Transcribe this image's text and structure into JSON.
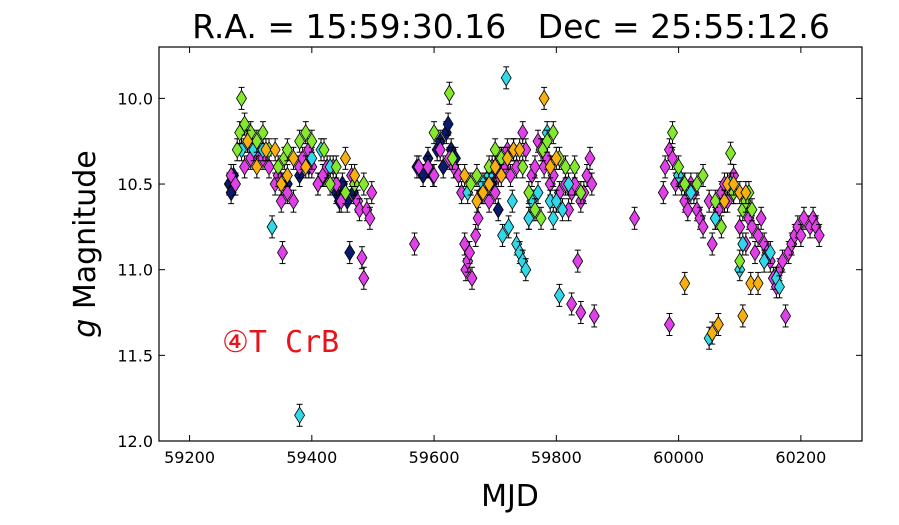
{
  "chart_data": {
    "type": "scatter",
    "title": "R.A. = 15:59:30.16   Dec = 25:55:12.6",
    "xlabel": "MJD",
    "ylabel_italic": "g",
    "ylabel_rest": " Magnitude",
    "annotation": "④T CrB",
    "xlim": [
      59150,
      60300
    ],
    "ylim": [
      12.0,
      9.7
    ],
    "y_inverted": true,
    "grid": false,
    "x_ticks": [
      59200,
      59400,
      59600,
      59800,
      60000,
      60200
    ],
    "y_ticks": [
      10.0,
      10.5,
      11.0,
      11.5,
      12.0
    ],
    "x_tick_labels": [
      "59200",
      "59400",
      "59600",
      "59800",
      "60000",
      "60200"
    ],
    "y_tick_labels": [
      "10.0",
      "10.5",
      "11.0",
      "11.5",
      "12.0"
    ],
    "colors": {
      "navy": "#0b1a6b",
      "magenta": "#e040e8",
      "cyan": "#30d8e8",
      "green": "#84e82c",
      "orange": "#f8b010"
    },
    "series": [
      {
        "color": "navy",
        "points": [
          [
            59265,
            10.5
          ],
          [
            59268,
            10.55
          ],
          [
            59272,
            10.45
          ],
          [
            59275,
            10.5
          ],
          [
            59360,
            10.5
          ],
          [
            59380,
            10.45
          ],
          [
            59395,
            10.4
          ],
          [
            59410,
            10.5
          ],
          [
            59420,
            10.45
          ],
          [
            59440,
            10.55
          ],
          [
            59445,
            10.6
          ],
          [
            59450,
            10.5
          ],
          [
            59458,
            10.6
          ],
          [
            59462,
            10.9
          ],
          [
            59468,
            10.55
          ],
          [
            59572,
            10.4
          ],
          [
            59582,
            10.45
          ],
          [
            59590,
            10.35
          ],
          [
            59598,
            10.45
          ],
          [
            59605,
            10.3
          ],
          [
            59610,
            10.25
          ],
          [
            59615,
            10.4
          ],
          [
            59620,
            10.2
          ],
          [
            59623,
            10.15
          ],
          [
            59628,
            10.3
          ],
          [
            59635,
            10.35
          ],
          [
            59690,
            10.45
          ],
          [
            59695,
            10.5
          ],
          [
            59705,
            10.65
          ]
        ]
      },
      {
        "color": "magenta",
        "points": [
          [
            59268,
            10.45
          ],
          [
            59275,
            10.5
          ],
          [
            59290,
            10.4
          ],
          [
            59300,
            10.35
          ],
          [
            59310,
            10.3
          ],
          [
            59320,
            10.35
          ],
          [
            59330,
            10.4
          ],
          [
            59340,
            10.5
          ],
          [
            59345,
            10.45
          ],
          [
            59350,
            10.6
          ],
          [
            59352,
            10.9
          ],
          [
            59360,
            10.55
          ],
          [
            59370,
            10.6
          ],
          [
            59380,
            10.4
          ],
          [
            59385,
            10.35
          ],
          [
            59395,
            10.3
          ],
          [
            59400,
            10.4
          ],
          [
            59410,
            10.5
          ],
          [
            59418,
            10.45
          ],
          [
            59425,
            10.4
          ],
          [
            59435,
            10.4
          ],
          [
            59440,
            10.5
          ],
          [
            59448,
            10.6
          ],
          [
            59455,
            10.55
          ],
          [
            59465,
            10.45
          ],
          [
            59470,
            10.5
          ],
          [
            59475,
            10.6
          ],
          [
            59478,
            10.65
          ],
          [
            59482,
            10.93
          ],
          [
            59485,
            11.05
          ],
          [
            59490,
            10.65
          ],
          [
            59495,
            10.7
          ],
          [
            59498,
            10.55
          ],
          [
            59568,
            10.85
          ],
          [
            59575,
            10.4
          ],
          [
            59590,
            10.4
          ],
          [
            59600,
            10.45
          ],
          [
            59610,
            10.3
          ],
          [
            59625,
            10.35
          ],
          [
            59632,
            10.4
          ],
          [
            59640,
            10.45
          ],
          [
            59645,
            10.55
          ],
          [
            59650,
            10.85
          ],
          [
            59652,
            11.0
          ],
          [
            59655,
            10.95
          ],
          [
            59658,
            10.9
          ],
          [
            59662,
            11.05
          ],
          [
            59668,
            10.8
          ],
          [
            59672,
            10.7
          ],
          [
            59678,
            10.55
          ],
          [
            59685,
            10.5
          ],
          [
            59690,
            10.6
          ],
          [
            59695,
            10.4
          ],
          [
            59700,
            10.55
          ],
          [
            59705,
            10.45
          ],
          [
            59710,
            10.35
          ],
          [
            59715,
            10.4
          ],
          [
            59720,
            10.3
          ],
          [
            59725,
            10.45
          ],
          [
            59730,
            10.3
          ],
          [
            59735,
            10.4
          ],
          [
            59745,
            10.2
          ],
          [
            59750,
            10.3
          ],
          [
            59755,
            10.7
          ],
          [
            59760,
            10.45
          ],
          [
            59765,
            10.4
          ],
          [
            59770,
            10.25
          ],
          [
            59775,
            10.3
          ],
          [
            59780,
            10.4
          ],
          [
            59785,
            10.35
          ],
          [
            59790,
            10.5
          ],
          [
            59795,
            10.45
          ],
          [
            59800,
            10.6
          ],
          [
            59805,
            10.55
          ],
          [
            59815,
            10.5
          ],
          [
            59820,
            10.65
          ],
          [
            59825,
            10.55
          ],
          [
            59830,
            10.5
          ],
          [
            59835,
            10.95
          ],
          [
            59840,
            10.6
          ],
          [
            59845,
            10.55
          ],
          [
            59850,
            10.45
          ],
          [
            59855,
            10.35
          ],
          [
            59858,
            10.5
          ],
          [
            59862,
            11.27
          ],
          [
            59825,
            11.2
          ],
          [
            59840,
            11.25
          ],
          [
            59928,
            10.7
          ],
          [
            59975,
            10.55
          ],
          [
            59978,
            10.4
          ],
          [
            59985,
            10.3
          ],
          [
            59990,
            10.35
          ],
          [
            59995,
            10.5
          ],
          [
            59985,
            11.32
          ],
          [
            60000,
            10.45
          ],
          [
            60005,
            10.5
          ],
          [
            60010,
            10.6
          ],
          [
            60015,
            10.65
          ],
          [
            60020,
            10.5
          ],
          [
            60025,
            10.55
          ],
          [
            60030,
            10.65
          ],
          [
            60035,
            10.7
          ],
          [
            60040,
            10.75
          ],
          [
            60050,
            10.6
          ],
          [
            60055,
            10.85
          ],
          [
            60060,
            10.7
          ],
          [
            60065,
            10.65
          ],
          [
            60070,
            10.55
          ],
          [
            60075,
            10.5
          ],
          [
            60080,
            10.6
          ],
          [
            60090,
            10.45
          ],
          [
            60100,
            10.75
          ],
          [
            60110,
            10.85
          ],
          [
            60115,
            10.7
          ],
          [
            60120,
            10.75
          ],
          [
            60125,
            10.9
          ],
          [
            60130,
            10.8
          ],
          [
            60135,
            10.7
          ],
          [
            60140,
            10.85
          ],
          [
            60145,
            10.9
          ],
          [
            60150,
            10.95
          ],
          [
            60155,
            11.05
          ],
          [
            60160,
            11.1
          ],
          [
            60165,
            11.0
          ],
          [
            60170,
            10.95
          ],
          [
            60175,
            11.27
          ],
          [
            60180,
            10.9
          ],
          [
            60185,
            10.85
          ],
          [
            60190,
            10.8
          ],
          [
            60195,
            10.75
          ],
          [
            60200,
            10.8
          ],
          [
            60205,
            10.7
          ],
          [
            60215,
            10.75
          ],
          [
            60220,
            10.7
          ],
          [
            60225,
            10.75
          ],
          [
            60230,
            10.8
          ]
        ]
      },
      {
        "color": "cyan",
        "points": [
          [
            59285,
            10.3
          ],
          [
            59295,
            10.25
          ],
          [
            59305,
            10.3
          ],
          [
            59320,
            10.3
          ],
          [
            59335,
            10.75
          ],
          [
            59380,
            11.85
          ],
          [
            59400,
            10.35
          ],
          [
            59415,
            10.3
          ],
          [
            59430,
            10.4
          ],
          [
            59655,
            10.55
          ],
          [
            59680,
            10.5
          ],
          [
            59690,
            10.45
          ],
          [
            59700,
            10.4
          ],
          [
            59712,
            10.8
          ],
          [
            59718,
            9.88
          ],
          [
            59722,
            10.75
          ],
          [
            59728,
            10.6
          ],
          [
            59735,
            10.85
          ],
          [
            59740,
            10.9
          ],
          [
            59745,
            10.95
          ],
          [
            59750,
            11.0
          ],
          [
            59755,
            10.7
          ],
          [
            59760,
            10.6
          ],
          [
            59770,
            10.55
          ],
          [
            59785,
            10.2
          ],
          [
            59790,
            10.6
          ],
          [
            59795,
            10.7
          ],
          [
            59800,
            10.6
          ],
          [
            59805,
            11.15
          ],
          [
            59810,
            10.65
          ],
          [
            59820,
            10.5
          ],
          [
            60000,
            10.45
          ],
          [
            60010,
            10.5
          ],
          [
            60020,
            10.55
          ],
          [
            60050,
            11.4
          ],
          [
            60060,
            10.7
          ],
          [
            60075,
            10.6
          ],
          [
            60085,
            10.5
          ],
          [
            60090,
            10.55
          ],
          [
            60100,
            11.0
          ],
          [
            60105,
            10.85
          ],
          [
            60140,
            10.95
          ],
          [
            60150,
            10.9
          ],
          [
            60160,
            11.05
          ],
          [
            60165,
            11.1
          ]
        ]
      },
      {
        "color": "green",
        "points": [
          [
            59278,
            10.3
          ],
          [
            59282,
            10.2
          ],
          [
            59285,
            10.0
          ],
          [
            59290,
            10.15
          ],
          [
            59300,
            10.2
          ],
          [
            59310,
            10.25
          ],
          [
            59320,
            10.2
          ],
          [
            59330,
            10.3
          ],
          [
            59345,
            10.4
          ],
          [
            59355,
            10.35
          ],
          [
            59360,
            10.3
          ],
          [
            59380,
            10.25
          ],
          [
            59390,
            10.2
          ],
          [
            59400,
            10.25
          ],
          [
            59420,
            10.3
          ],
          [
            59430,
            10.5
          ],
          [
            59440,
            10.4
          ],
          [
            59455,
            10.55
          ],
          [
            59470,
            10.5
          ],
          [
            59485,
            10.5
          ],
          [
            59600,
            10.2
          ],
          [
            59625,
            9.97
          ],
          [
            59630,
            10.35
          ],
          [
            59660,
            10.5
          ],
          [
            59670,
            10.45
          ],
          [
            59690,
            10.4
          ],
          [
            59700,
            10.3
          ],
          [
            59710,
            10.35
          ],
          [
            59720,
            10.35
          ],
          [
            59730,
            10.3
          ],
          [
            59745,
            10.4
          ],
          [
            59755,
            10.55
          ],
          [
            59765,
            10.65
          ],
          [
            59775,
            10.7
          ],
          [
            59778,
            10.3
          ],
          [
            59785,
            10.25
          ],
          [
            59795,
            10.2
          ],
          [
            59805,
            10.35
          ],
          [
            59815,
            10.4
          ],
          [
            59830,
            10.4
          ],
          [
            59840,
            10.55
          ],
          [
            59990,
            10.2
          ],
          [
            60000,
            10.4
          ],
          [
            60010,
            10.5
          ],
          [
            60030,
            10.5
          ],
          [
            60040,
            10.45
          ],
          [
            60060,
            10.6
          ],
          [
            60070,
            10.75
          ],
          [
            60075,
            10.6
          ],
          [
            60085,
            10.32
          ],
          [
            60090,
            10.55
          ],
          [
            60100,
            10.95
          ],
          [
            60105,
            10.65
          ],
          [
            60110,
            10.6
          ],
          [
            60115,
            10.55
          ],
          [
            60120,
            10.65
          ]
        ]
      },
      {
        "color": "orange",
        "points": [
          [
            59295,
            10.25
          ],
          [
            59310,
            10.4
          ],
          [
            59325,
            10.3
          ],
          [
            59340,
            10.3
          ],
          [
            59350,
            10.5
          ],
          [
            59360,
            10.45
          ],
          [
            59370,
            10.35
          ],
          [
            59390,
            10.4
          ],
          [
            59455,
            10.35
          ],
          [
            59470,
            10.45
          ],
          [
            59650,
            10.45
          ],
          [
            59670,
            10.6
          ],
          [
            59680,
            10.55
          ],
          [
            59690,
            10.5
          ],
          [
            59700,
            10.4
          ],
          [
            59710,
            10.45
          ],
          [
            59720,
            10.35
          ],
          [
            59730,
            10.3
          ],
          [
            59740,
            10.3
          ],
          [
            59780,
            10.0
          ],
          [
            59790,
            10.4
          ],
          [
            59800,
            10.35
          ],
          [
            60010,
            11.08
          ],
          [
            60055,
            11.37
          ],
          [
            60065,
            11.32
          ],
          [
            60075,
            10.6
          ],
          [
            60080,
            10.5
          ],
          [
            60090,
            10.5
          ],
          [
            60100,
            10.55
          ],
          [
            60110,
            10.55
          ],
          [
            60118,
            11.08
          ],
          [
            60105,
            11.27
          ],
          [
            60130,
            11.08
          ]
        ]
      }
    ]
  }
}
